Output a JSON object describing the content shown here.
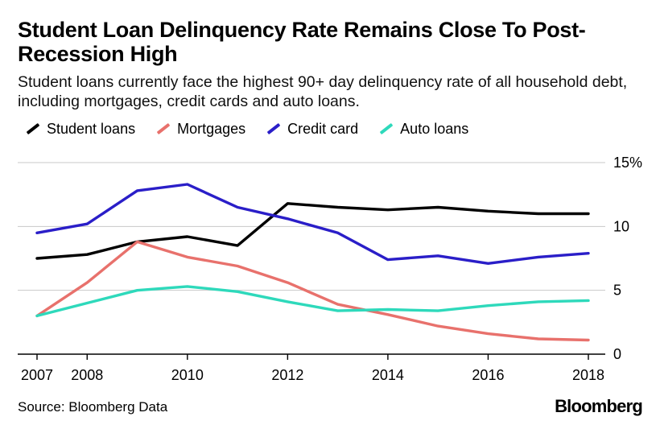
{
  "chart_data": {
    "type": "line",
    "title": "Student Loan Delinquency Rate Remains Close To Post-Recession High",
    "subtitle": "Student loans currently face the highest 90+ day delinquency rate of all household debt, including mortgages, credit cards and auto loans.",
    "x": [
      2007,
      2008,
      2009,
      2010,
      2011,
      2012,
      2013,
      2014,
      2015,
      2016,
      2017,
      2018
    ],
    "x_tick_labels": [
      "2007",
      "2008",
      "2010",
      "2012",
      "2014",
      "2016",
      "2018"
    ],
    "y_tick_labels": [
      "0",
      "5",
      "10",
      "15%"
    ],
    "y_ticks": [
      0,
      5,
      10,
      15
    ],
    "ylim": [
      0,
      15
    ],
    "xlim": [
      2007,
      2018
    ],
    "y_axis_position": "right",
    "grid": "horizontal",
    "legend_position": "top-left",
    "series": [
      {
        "name": "Student loans",
        "color": "#000000",
        "values": [
          7.5,
          7.8,
          8.8,
          9.2,
          8.5,
          11.8,
          11.5,
          11.3,
          11.5,
          11.2,
          11.0,
          11.0
        ]
      },
      {
        "name": "Mortgages",
        "color": "#e8716c",
        "values": [
          3.0,
          5.6,
          8.8,
          7.6,
          6.9,
          5.6,
          3.9,
          3.1,
          2.2,
          1.6,
          1.2,
          1.1
        ]
      },
      {
        "name": "Credit card",
        "color": "#2a1ec8",
        "values": [
          9.5,
          10.2,
          12.8,
          13.3,
          11.5,
          10.6,
          9.5,
          7.4,
          7.7,
          7.1,
          7.6,
          7.9
        ]
      },
      {
        "name": "Auto loans",
        "color": "#2ed9bb",
        "values": [
          3.0,
          4.0,
          5.0,
          5.3,
          4.9,
          4.1,
          3.4,
          3.5,
          3.4,
          3.8,
          4.1,
          4.2
        ]
      }
    ]
  },
  "footer": {
    "source": "Source: Bloomberg Data",
    "brand": "Bloomberg"
  }
}
